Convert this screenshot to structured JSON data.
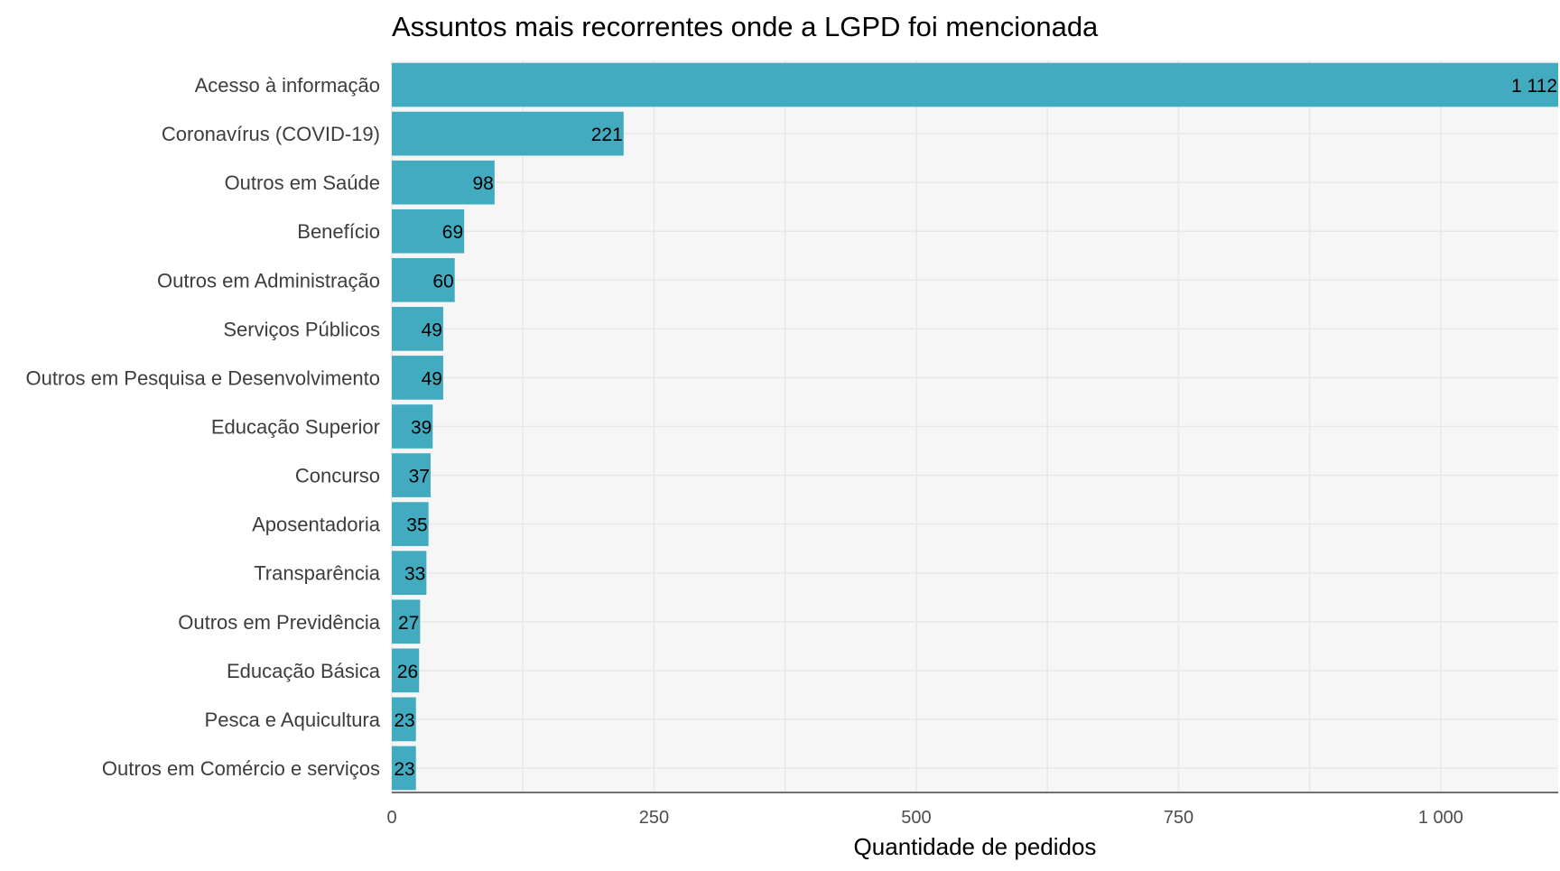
{
  "chart_data": {
    "type": "bar",
    "orientation": "horizontal",
    "title": "Assuntos mais recorrentes onde a LGPD foi mencionada",
    "xlabel": "Quantidade de pedidos",
    "ylabel": "",
    "categories": [
      "Acesso à informação",
      "Coronavírus (COVID-19)",
      "Outros em Saúde",
      "Benefício",
      "Outros em Administração",
      "Serviços Públicos",
      "Outros em Pesquisa e Desenvolvimento",
      "Educação Superior",
      "Concurso",
      "Aposentadoria",
      "Transparência",
      "Outros em Previdência",
      "Educação Básica",
      "Pesca e Aquicultura",
      "Outros em Comércio e serviços"
    ],
    "values": [
      1112,
      221,
      98,
      69,
      60,
      49,
      49,
      39,
      37,
      35,
      33,
      27,
      26,
      23,
      23
    ],
    "value_labels": [
      "1 112",
      "221",
      "98",
      "69",
      "60",
      "49",
      "49",
      "39",
      "37",
      "35",
      "33",
      "27",
      "26",
      "23",
      "23"
    ],
    "xlim": [
      0,
      1112
    ],
    "xticks": [
      0,
      250,
      500,
      750,
      1000
    ],
    "xtick_labels": [
      "0",
      "250",
      "500",
      "750",
      "1 000"
    ],
    "grid": true,
    "legend": "none",
    "colors": {
      "bar": "#42abbf",
      "panel": "#f6f6f6",
      "grid": "#e8e8e8",
      "axis_line": "#444444"
    }
  }
}
